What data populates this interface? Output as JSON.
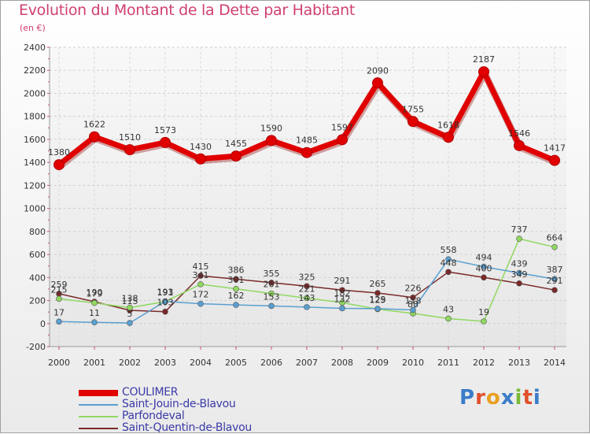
{
  "title": "Evolution du Montant de la Dette par Habitant",
  "unit": "(en €)",
  "logo": {
    "text": "Proxiti",
    "letters": [
      "P",
      "r",
      "o",
      "x",
      "i",
      "t",
      "i"
    ],
    "colors": [
      "#3a7cc8",
      "#e0502a",
      "#e8a020",
      "#3a7cc8",
      "#7ab838",
      "#e0502a",
      "#3a7cc8"
    ]
  },
  "chart_data": {
    "type": "line",
    "x": [
      2000,
      2001,
      2002,
      2003,
      2004,
      2005,
      2006,
      2007,
      2008,
      2009,
      2010,
      2011,
      2012,
      2013,
      2014
    ],
    "ylim": [
      -200,
      2400
    ],
    "yticks": [
      -200,
      0,
      200,
      400,
      600,
      800,
      1000,
      1200,
      1400,
      1600,
      1800,
      2000,
      2200,
      2400
    ],
    "grid": true,
    "legend_placement": "bottom-left",
    "series": [
      {
        "name": "COULIMER",
        "color": "#e00000",
        "values": [
          1380,
          1622,
          1510,
          1573,
          1430,
          1455,
          1590,
          1485,
          1597,
          2090,
          1755,
          1618,
          2187,
          1546,
          1417
        ],
        "labels": [
          "1380",
          "1622",
          "1510",
          "1573",
          "1430",
          "1455",
          "1590",
          "1485",
          "1597",
          "2090",
          "1755",
          "1618",
          "2187",
          "1546",
          "1417"
        ]
      },
      {
        "name": "Saint-Jouin-de-Blavou",
        "color": "#5a9fd0",
        "values": [
          17,
          11,
          5,
          193,
          172,
          162,
          153,
          143,
          132,
          129,
          118,
          558,
          494,
          439,
          387
        ],
        "labels": [
          "17",
          "11",
          "5",
          "193",
          "172",
          "162",
          "153",
          "143",
          "132",
          "129",
          "118",
          "558",
          "494",
          "439",
          "387"
        ]
      },
      {
        "name": "Parfondeval",
        "color": "#90d860",
        "values": [
          215,
          179,
          138,
          191,
          341,
          301,
          261,
          221,
          182,
          125,
          88,
          43,
          19,
          737,
          664
        ],
        "labels": [
          "215",
          "179",
          "138",
          "191",
          "341",
          "301",
          "261",
          "221",
          "182",
          "125",
          "88",
          "43",
          "19",
          "737",
          "664"
        ]
      },
      {
        "name": "Saint-Quentin-de-Blavou",
        "color": "#7a2a2a",
        "values": [
          259,
          190,
          115,
          103,
          415,
          386,
          355,
          325,
          291,
          265,
          226,
          448,
          400,
          349,
          291
        ],
        "labels": [
          "259",
          "190",
          "115",
          "103",
          "415",
          "386",
          "355",
          "325",
          "291",
          "265",
          "226",
          "448",
          "400",
          "349",
          "291"
        ]
      }
    ]
  }
}
